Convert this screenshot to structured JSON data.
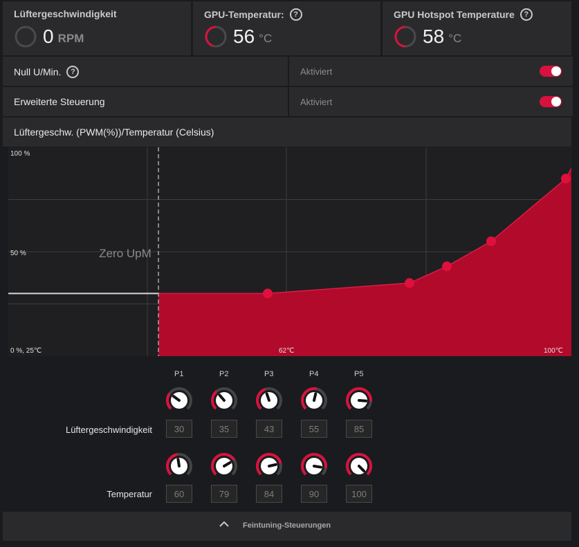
{
  "stats": {
    "fan": {
      "title": "Lüftergeschwindigkeit",
      "value": "0",
      "unit": "RPM",
      "fraction": 0
    },
    "gpu_temp": {
      "title": "GPU-Temperatur:",
      "value": "56",
      "unit": "°C",
      "fraction": 0.45
    },
    "hotspot": {
      "title": "GPU Hotspot Temperature",
      "value": "58",
      "unit": "°C",
      "fraction": 0.5
    }
  },
  "zero_rpm": {
    "label": "Null U/Min.",
    "status": "Aktiviert",
    "enabled": true
  },
  "advanced": {
    "label": "Erweiterte Steuerung",
    "status": "Aktiviert",
    "enabled": true
  },
  "curve_title": "Lüftergeschw. (PWM(%))/Temperatur (Celsius)",
  "chart_data": {
    "type": "area",
    "title": "Lüftergeschw. (PWM(%))/Temperatur (Celsius)",
    "x_unit": "°C",
    "y_unit": "%",
    "xlim": [
      25,
      100
    ],
    "ylim": [
      0,
      100
    ],
    "zero_rpm_threshold_temp": 45,
    "zero_rpm_fan_level": 30,
    "zero_label": "Zero UpM",
    "y_tick_labels": [
      "100 %",
      "50 %",
      "0 %, 25℃"
    ],
    "x_tick_labels": [
      "62℃",
      "100℃"
    ],
    "points": [
      {
        "name": "P1",
        "temp": 60,
        "fan": 30
      },
      {
        "name": "P2",
        "temp": 79,
        "fan": 35
      },
      {
        "name": "P3",
        "temp": 84,
        "fan": 43
      },
      {
        "name": "P4",
        "temp": 90,
        "fan": 55
      },
      {
        "name": "P5",
        "temp": 100,
        "fan": 85
      }
    ]
  },
  "controls": {
    "point_names": [
      "P1",
      "P2",
      "P3",
      "P4",
      "P5"
    ],
    "fan_label": "Lüftergeschwindigkeit",
    "temp_label": "Temperatur",
    "fan_values": [
      "30",
      "35",
      "43",
      "55",
      "85"
    ],
    "temp_values": [
      "60",
      "79",
      "84",
      "90",
      "100"
    ]
  },
  "footer": {
    "label": "Feintuning-Steuerungen"
  },
  "colors": {
    "accent": "#d8123e",
    "fill": "#b10a2b",
    "panel": "#2a2a2c",
    "bg": "#1a1b1e"
  }
}
